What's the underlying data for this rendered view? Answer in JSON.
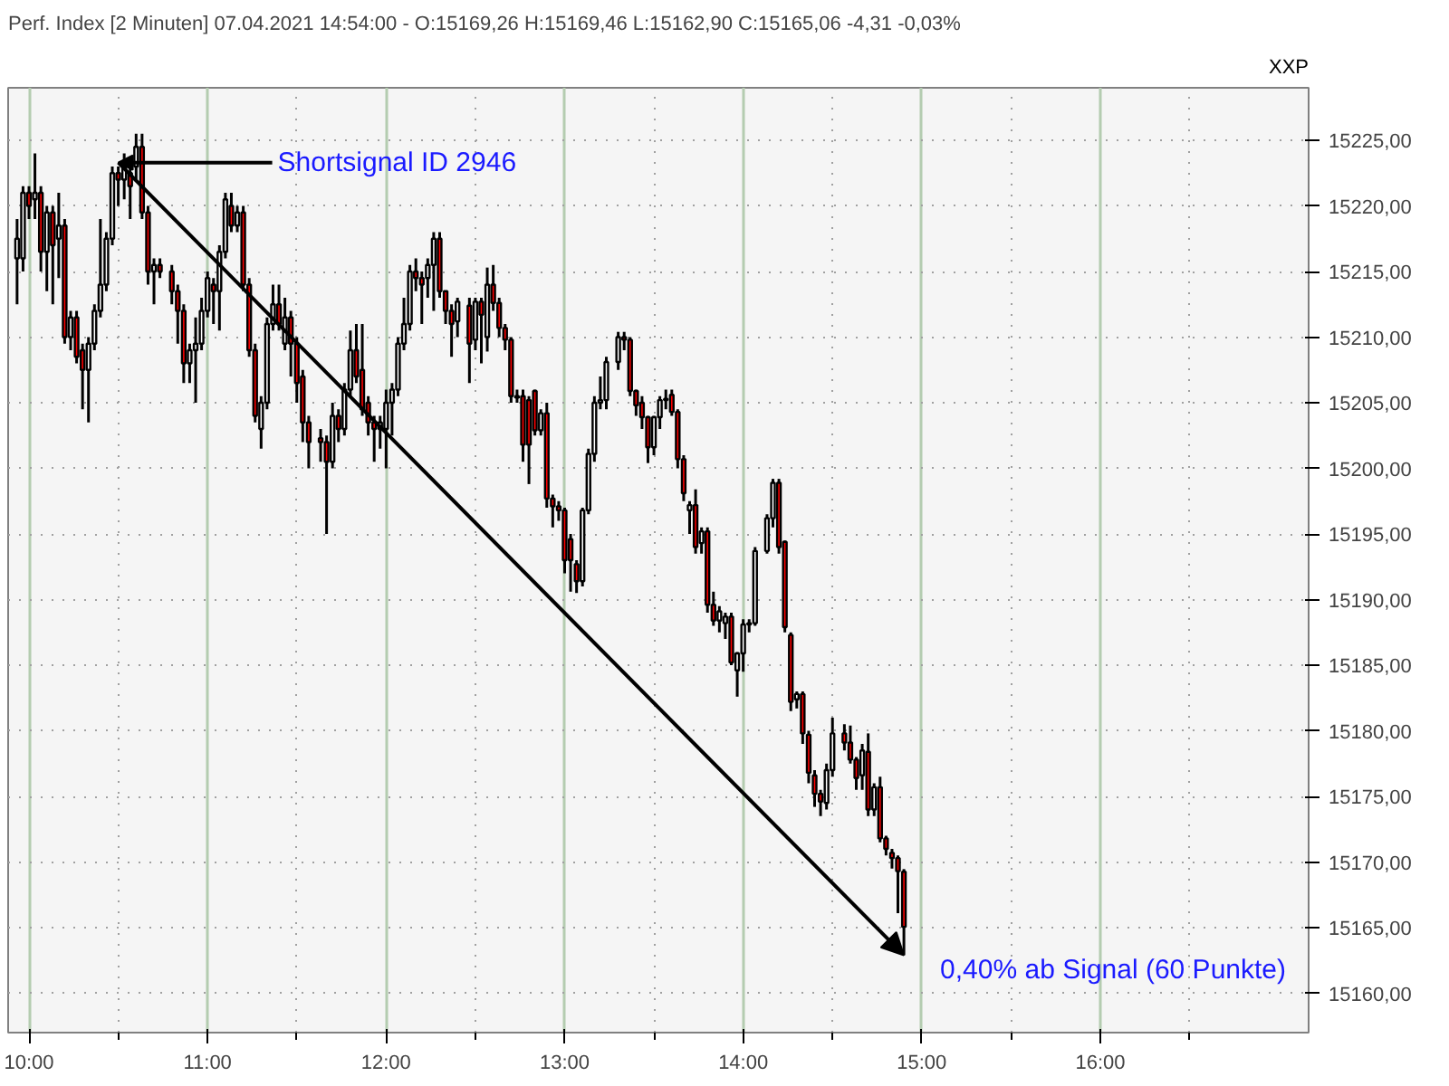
{
  "chart_data": {
    "type": "candlestick",
    "title": "Perf. Index [2 Minuten] 07.04.2021 14:54:00 - O:15169,26 H:15169,46 L:15162,90 C:15165,06 -4,31 -0,03%",
    "x": [
      "2021-04-07T09:56",
      "2021-04-07T09:58",
      "2021-04-07T10:00",
      "2021-04-07T10:02",
      "2021-04-07T10:04",
      "2021-04-07T10:06",
      "2021-04-07T10:08",
      "2021-04-07T10:10",
      "2021-04-07T10:12",
      "2021-04-07T10:14",
      "2021-04-07T10:16",
      "2021-04-07T10:18",
      "2021-04-07T10:20",
      "2021-04-07T10:22",
      "2021-04-07T10:24",
      "2021-04-07T10:26",
      "2021-04-07T10:28",
      "2021-04-07T10:30",
      "2021-04-07T10:32",
      "2021-04-07T10:34",
      "2021-04-07T10:36",
      "2021-04-07T10:38",
      "2021-04-07T10:40",
      "2021-04-07T10:42",
      "2021-04-07T10:44",
      "2021-04-07T10:48",
      "2021-04-07T10:50",
      "2021-04-07T10:52",
      "2021-04-07T10:54",
      "2021-04-07T10:56",
      "2021-04-07T10:58",
      "2021-04-07T11:00",
      "2021-04-07T11:02",
      "2021-04-07T11:04",
      "2021-04-07T11:06",
      "2021-04-07T11:08",
      "2021-04-07T11:10",
      "2021-04-07T11:12",
      "2021-04-07T11:14",
      "2021-04-07T11:16",
      "2021-04-07T11:18",
      "2021-04-07T11:20",
      "2021-04-07T11:22",
      "2021-04-07T11:24",
      "2021-04-07T11:26",
      "2021-04-07T11:28",
      "2021-04-07T11:30",
      "2021-04-07T11:32",
      "2021-04-07T11:34",
      "2021-04-07T11:38",
      "2021-04-07T11:40",
      "2021-04-07T11:42",
      "2021-04-07T11:44",
      "2021-04-07T11:46",
      "2021-04-07T11:48",
      "2021-04-07T11:50",
      "2021-04-07T11:52",
      "2021-04-07T11:54",
      "2021-04-07T11:56",
      "2021-04-07T11:58",
      "2021-04-07T12:00",
      "2021-04-07T12:02",
      "2021-04-07T12:04",
      "2021-04-07T12:06",
      "2021-04-07T12:08",
      "2021-04-07T12:10",
      "2021-04-07T12:12",
      "2021-04-07T12:14",
      "2021-04-07T12:16",
      "2021-04-07T12:18",
      "2021-04-07T12:20",
      "2021-04-07T12:22",
      "2021-04-07T12:24",
      "2021-04-07T12:28",
      "2021-04-07T12:30",
      "2021-04-07T12:32",
      "2021-04-07T12:34",
      "2021-04-07T12:36",
      "2021-04-07T12:38",
      "2021-04-07T12:40",
      "2021-04-07T12:42",
      "2021-04-07T12:44",
      "2021-04-07T12:46",
      "2021-04-07T12:48",
      "2021-04-07T12:50",
      "2021-04-07T12:52",
      "2021-04-07T12:54",
      "2021-04-07T12:56",
      "2021-04-07T12:58",
      "2021-04-07T13:00",
      "2021-04-07T13:02",
      "2021-04-07T13:04",
      "2021-04-07T13:06",
      "2021-04-07T13:08",
      "2021-04-07T13:10",
      "2021-04-07T13:12",
      "2021-04-07T13:14",
      "2021-04-07T13:18",
      "2021-04-07T13:20",
      "2021-04-07T13:22",
      "2021-04-07T13:24",
      "2021-04-07T13:26",
      "2021-04-07T13:28",
      "2021-04-07T13:30",
      "2021-04-07T13:32",
      "2021-04-07T13:34",
      "2021-04-07T13:36",
      "2021-04-07T13:38",
      "2021-04-07T13:40",
      "2021-04-07T13:42",
      "2021-04-07T13:44",
      "2021-04-07T13:46",
      "2021-04-07T13:48",
      "2021-04-07T13:50",
      "2021-04-07T13:52",
      "2021-04-07T13:54",
      "2021-04-07T13:56",
      "2021-04-07T13:58",
      "2021-04-07T14:00",
      "2021-04-07T14:02",
      "2021-04-07T14:04",
      "2021-04-07T14:08",
      "2021-04-07T14:10",
      "2021-04-07T14:12",
      "2021-04-07T14:14",
      "2021-04-07T14:16",
      "2021-04-07T14:18",
      "2021-04-07T14:20",
      "2021-04-07T14:22",
      "2021-04-07T14:24",
      "2021-04-07T14:26",
      "2021-04-07T14:28",
      "2021-04-07T14:30",
      "2021-04-07T14:34",
      "2021-04-07T14:36",
      "2021-04-07T14:38",
      "2021-04-07T14:40",
      "2021-04-07T14:42",
      "2021-04-07T14:44",
      "2021-04-07T14:46",
      "2021-04-07T14:48",
      "2021-04-07T14:50",
      "2021-04-07T14:52",
      "2021-04-07T14:54"
    ],
    "ohlc": [
      [
        15216.0,
        15219,
        15212.5,
        15217.5
      ],
      [
        15216,
        15221.5,
        15215,
        15221
      ],
      [
        15221,
        15221.5,
        15219,
        15220
      ],
      [
        15220.5,
        15224,
        15219,
        15221
      ],
      [
        15221,
        15221.5,
        15215,
        15216.5
      ],
      [
        15216.5,
        15220,
        15213.5,
        15219.5
      ],
      [
        15219.5,
        15220,
        15212.5,
        15217
      ],
      [
        15217.5,
        15221,
        15214.5,
        15218.5
      ],
      [
        15218.5,
        15219,
        15209.5,
        15210
      ],
      [
        15210,
        15212,
        15209,
        15211.5
      ],
      [
        15211.5,
        15212,
        15208,
        15208.5
      ],
      [
        15209,
        15209.5,
        15204.5,
        15207.5
      ],
      [
        15207.5,
        15210,
        15203.5,
        15209.5
      ],
      [
        15209.5,
        15212.5,
        15209,
        15212
      ],
      [
        15212,
        15219,
        15211.5,
        15214
      ],
      [
        15214,
        15218,
        15213.5,
        15217.5
      ],
      [
        15217.5,
        15223,
        15217,
        15222.5
      ],
      [
        15222.5,
        15223,
        15220,
        15222
      ],
      [
        15222,
        15224,
        15220.5,
        15223
      ],
      [
        15222.5,
        15223,
        15219,
        15221.5
      ],
      [
        15223,
        15225.5,
        15222,
        15224.5
      ],
      [
        15224.5,
        15225.5,
        15219,
        15219.5
      ],
      [
        15219.5,
        15220,
        15214,
        15215
      ],
      [
        15215,
        15216,
        15212.5,
        15215.5
      ],
      [
        15215.5,
        15216,
        15214.5,
        15215
      ],
      [
        15215,
        15215.5,
        15212.5,
        15213.5
      ],
      [
        15213.5,
        15214,
        15209.5,
        15212
      ],
      [
        15212,
        15212.5,
        15206.5,
        15208
      ],
      [
        15208,
        15209.5,
        15206.5,
        15209
      ],
      [
        15209,
        15211.5,
        15205,
        15209.5
      ],
      [
        15209.5,
        15213,
        15209,
        15212
      ],
      [
        15212,
        15215,
        15211.5,
        15214.5
      ],
      [
        15214,
        15214.5,
        15211,
        15213.5
      ],
      [
        15213.5,
        15217,
        15210.5,
        15216.5
      ],
      [
        15216.5,
        15221,
        15216,
        15220.5
      ],
      [
        15220,
        15221,
        15218,
        15218.5
      ],
      [
        15218.5,
        15220,
        15218,
        15219.5
      ],
      [
        15219.5,
        15220,
        15213.5,
        15214
      ],
      [
        15214,
        15214.5,
        15208.5,
        15209
      ],
      [
        15209,
        15209.5,
        15203.5,
        15204
      ],
      [
        15203,
        15205.5,
        15201.5,
        15205
      ],
      [
        15205,
        15211.5,
        15204.5,
        15211
      ],
      [
        15211,
        15214,
        15210.5,
        15212.5
      ],
      [
        15212.5,
        15214,
        15210.5,
        15211
      ],
      [
        15209.5,
        15213,
        15209,
        15211.5
      ],
      [
        15211.5,
        15212,
        15207,
        15209.5
      ],
      [
        15209.5,
        15210,
        15205,
        15206.5
      ],
      [
        15207,
        15207.5,
        15202,
        15203.5
      ],
      [
        15203.5,
        15204,
        15200,
        15202
      ],
      [
        15202.3,
        15203,
        15200.5,
        15202
      ],
      [
        15202,
        15202.5,
        15195,
        15200.5
      ],
      [
        15200.5,
        15205,
        15200,
        15204
      ],
      [
        15204,
        15204.5,
        15202,
        15203
      ],
      [
        15203,
        15206.5,
        15202.5,
        15206
      ],
      [
        15206,
        15210.5,
        15205.5,
        15209
      ],
      [
        15209,
        15211,
        15206.5,
        15207
      ],
      [
        15207.5,
        15211,
        15204,
        15204.5
      ],
      [
        15205,
        15205.5,
        15202.5,
        15203.5
      ],
      [
        15203.5,
        15204,
        15200.5,
        15203
      ],
      [
        15203,
        15204,
        15201.5,
        15203.5
      ],
      [
        15203,
        15206,
        15200,
        15205
      ],
      [
        15205,
        15206.5,
        15202.5,
        15206
      ],
      [
        15206,
        15210,
        15205.5,
        15209.5
      ],
      [
        15209.5,
        15213,
        15209,
        15211
      ],
      [
        15211,
        15215.5,
        15210.5,
        15215
      ],
      [
        15215,
        15216,
        15213.5,
        15214.5
      ],
      [
        15214.5,
        15215,
        15211,
        15214
      ],
      [
        15214.5,
        15216,
        15213,
        15215.5
      ],
      [
        15215.5,
        15218,
        15212,
        15217.5
      ],
      [
        15217.5,
        15218,
        15213,
        15213.5
      ],
      [
        15213.5,
        15213.5,
        15211,
        15212
      ],
      [
        15212,
        15212.5,
        15208.5,
        15211
      ],
      [
        15211.2,
        15213,
        15210,
        15212.7
      ],
      [
        15212.4,
        15213,
        15206.5,
        15209.5
      ],
      [
        15209.8,
        15213,
        15209,
        15212.7
      ],
      [
        15212.7,
        15213,
        15208,
        15211.7
      ],
      [
        15210,
        15215.3,
        15208.9,
        15214
      ],
      [
        15214,
        15215.5,
        15212,
        15212.6
      ],
      [
        15212.6,
        15213,
        15210,
        15210.7
      ],
      [
        15210.7,
        15211,
        15209,
        15209.8
      ],
      [
        15209.8,
        15210,
        15205,
        15205.5
      ],
      [
        15205.4,
        15206,
        15205,
        15205.5
      ],
      [
        15205.5,
        15206,
        15200.5,
        15201.8
      ],
      [
        15205.2,
        15205.5,
        15198.8,
        15201.8
      ],
      [
        15205.9,
        15206,
        15202.5,
        15202.9
      ],
      [
        15202.9,
        15204.5,
        15202.5,
        15204.2
      ],
      [
        15204.2,
        15205,
        15197,
        15197.7
      ],
      [
        15197.7,
        15198,
        15195.5,
        15197.1
      ],
      [
        15197.1,
        15197.5,
        15196,
        15196.8
      ],
      [
        15196.8,
        15197,
        15192,
        15193
      ],
      [
        15194.6,
        15195,
        15190.6,
        15193
      ],
      [
        15192.7,
        15193,
        15190.5,
        15191.4
      ],
      [
        15191.4,
        15197,
        15191,
        15196.8
      ],
      [
        15196.8,
        15201.5,
        15196.5,
        15201.1
      ],
      [
        15201.1,
        15205.5,
        15200.5,
        15205
      ],
      [
        15205,
        15207,
        15204.5,
        15205.2
      ],
      [
        15205.2,
        15208.5,
        15204.5,
        15208.1
      ],
      [
        15208.1,
        15210.4,
        15207.5,
        15210
      ],
      [
        15210,
        15210.4,
        15209,
        15209.8
      ],
      [
        15209.8,
        15210,
        15205.5,
        15205.9
      ],
      [
        15205.9,
        15206,
        15204,
        15204.8
      ],
      [
        15205,
        15205.5,
        15203,
        15203.9
      ],
      [
        15203.9,
        15204,
        15200.4,
        15201.6
      ],
      [
        15201.6,
        15204,
        15201,
        15203.9
      ],
      [
        15203.9,
        15205.5,
        15203,
        15205.2
      ],
      [
        15205.2,
        15206,
        15204.5,
        15205.3
      ],
      [
        15205.6,
        15206,
        15204,
        15204.3
      ],
      [
        15204.3,
        15204.5,
        15200,
        15200.7
      ],
      [
        15200.7,
        15201,
        15197.5,
        15198.1
      ],
      [
        15196.8,
        15197.5,
        15195,
        15197.2
      ],
      [
        15197.2,
        15198.4,
        15193.5,
        15194
      ],
      [
        15194.3,
        15195.5,
        15193.5,
        15195.2
      ],
      [
        15195.2,
        15195.5,
        15189,
        15189.6
      ],
      [
        15189.6,
        15190.6,
        15188,
        15188.4
      ],
      [
        15188.4,
        15189.5,
        15187.5,
        15189.1
      ],
      [
        15188.2,
        15189,
        15187,
        15188.7
      ],
      [
        15188.7,
        15189,
        15185,
        15185.2
      ],
      [
        15184.6,
        15186,
        15182.6,
        15185.9
      ],
      [
        15185.9,
        15188.5,
        15184.5,
        15188.1
      ],
      [
        15188.1,
        15188.5,
        15187.5,
        15188.2
      ],
      [
        15188.2,
        15194,
        15188,
        15193.7
      ],
      [
        15193.7,
        15196.5,
        15193.5,
        15196.2
      ],
      [
        15196.2,
        15199.2,
        15195.5,
        15198.9
      ],
      [
        15198.9,
        15199.2,
        15193.5,
        15194
      ],
      [
        15194.4,
        15194.5,
        15187.5,
        15187.9
      ],
      [
        15187.3,
        15187.5,
        15181.5,
        15182.2
      ],
      [
        15182.4,
        15183,
        15181.7,
        15182.8
      ],
      [
        15182.8,
        15183,
        15179,
        15179.8
      ],
      [
        15179.7,
        15180,
        15176,
        15176.8
      ],
      [
        15176.6,
        15177,
        15174.2,
        15175.2
      ],
      [
        15175.2,
        15175.5,
        15173.5,
        15174.6
      ],
      [
        15174.5,
        15177.5,
        15174,
        15177
      ],
      [
        15177,
        15181,
        15176.5,
        15179.8
      ],
      [
        15179.8,
        15180.5,
        15178.5,
        15179.1
      ],
      [
        15179.1,
        15180.4,
        15177.5,
        15177.8
      ],
      [
        15177.8,
        15178,
        15175.5,
        15176.4
      ],
      [
        15176.6,
        15179,
        15175.5,
        15178.5
      ],
      [
        15178.4,
        15179.8,
        15173.5,
        15174
      ],
      [
        15174,
        15176,
        15173.5,
        15175.7
      ],
      [
        15175.7,
        15176.5,
        15171.5,
        15171.8
      ],
      [
        15171.8,
        15172,
        15170.5,
        15171
      ],
      [
        15170.7,
        15171,
        15169.5,
        15170.3
      ],
      [
        15170.3,
        15170.5,
        15166.1,
        15169.3
      ],
      [
        15169.26,
        15169.46,
        15162.9,
        15165.06
      ]
    ],
    "xlim": [
      "2021-04-07T09:53",
      "2021-04-07T17:10"
    ],
    "xticks": [
      {
        "value": "2021-04-07T10:00",
        "label": "10:00"
      },
      {
        "value": "2021-04-07T10:30",
        "label": null
      },
      {
        "value": "2021-04-07T11:00",
        "label": "11:00"
      },
      {
        "value": "2021-04-07T11:30",
        "label": null
      },
      {
        "value": "2021-04-07T12:00",
        "label": "12:00"
      },
      {
        "value": "2021-04-07T12:30",
        "label": null
      },
      {
        "value": "2021-04-07T13:00",
        "label": "13:00"
      },
      {
        "value": "2021-04-07T13:30",
        "label": null
      },
      {
        "value": "2021-04-07T14:00",
        "label": "14:00"
      },
      {
        "value": "2021-04-07T14:30",
        "label": null
      },
      {
        "value": "2021-04-07T15:00",
        "label": "15:00"
      },
      {
        "value": "2021-04-07T15:30",
        "label": null
      },
      {
        "value": "2021-04-07T16:00",
        "label": "16:00"
      },
      {
        "value": "2021-04-07T16:30",
        "label": null
      }
    ],
    "ylim": [
      15157,
      15229
    ],
    "yticks": [
      {
        "value": 15160,
        "label": "15160,00"
      },
      {
        "value": 15165,
        "label": "15165,00"
      },
      {
        "value": 15170,
        "label": "15170,00"
      },
      {
        "value": 15175,
        "label": "15175,00"
      },
      {
        "value": 15180,
        "label": "15180,00"
      },
      {
        "value": 15185,
        "label": "15185,00"
      },
      {
        "value": 15190,
        "label": "15190,00"
      },
      {
        "value": 15195,
        "label": "15195,00"
      },
      {
        "value": 15200,
        "label": "15200,00"
      },
      {
        "value": 15205,
        "label": "15205,00"
      },
      {
        "value": 15210,
        "label": "15210,00"
      },
      {
        "value": 15215,
        "label": "15215,00"
      },
      {
        "value": 15220,
        "label": "15220,00"
      },
      {
        "value": 15225,
        "label": "15225,00"
      }
    ],
    "grid": true,
    "annotations": [
      {
        "text": "Shortsignal ID 2946",
        "x": "2021-04-07T10:30",
        "y": 15223.3
      },
      {
        "text": "0,40% ab Signal (60 Punkte)",
        "x": "2021-04-07T14:54",
        "y": 15162.9
      },
      "XXP"
    ]
  }
}
